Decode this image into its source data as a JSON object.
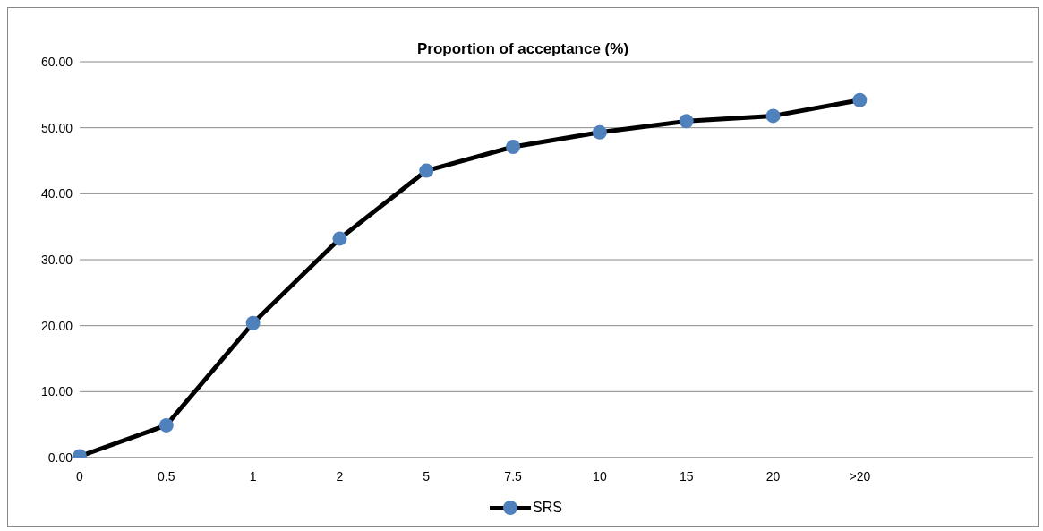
{
  "chart_data": {
    "type": "line",
    "title": "Proportion of acceptance (%)",
    "categories": [
      "0",
      "0.5",
      "1",
      "2",
      "5",
      "7.5",
      "10",
      "15",
      "20",
      ">20",
      null,
      null
    ],
    "series": [
      {
        "name": "SRS",
        "color": "#4f81bd",
        "values": [
          0.2,
          4.9,
          20.4,
          33.2,
          43.5,
          47.1,
          49.3,
          51.0,
          51.8,
          54.2,
          null,
          null
        ]
      }
    ],
    "ylim": [
      0,
      60
    ],
    "yticks": [
      {
        "value": 0,
        "label": "0.00"
      },
      {
        "value": 10,
        "label": "10.00"
      },
      {
        "value": 20,
        "label": "20.00"
      },
      {
        "value": 30,
        "label": "30.00"
      },
      {
        "value": 40,
        "label": "40.00"
      },
      {
        "value": 50,
        "label": "50.00"
      },
      {
        "value": 60,
        "label": "60.00"
      }
    ],
    "grid": "y",
    "legend": "bottom",
    "marker": "circle",
    "line_style": "solid"
  }
}
